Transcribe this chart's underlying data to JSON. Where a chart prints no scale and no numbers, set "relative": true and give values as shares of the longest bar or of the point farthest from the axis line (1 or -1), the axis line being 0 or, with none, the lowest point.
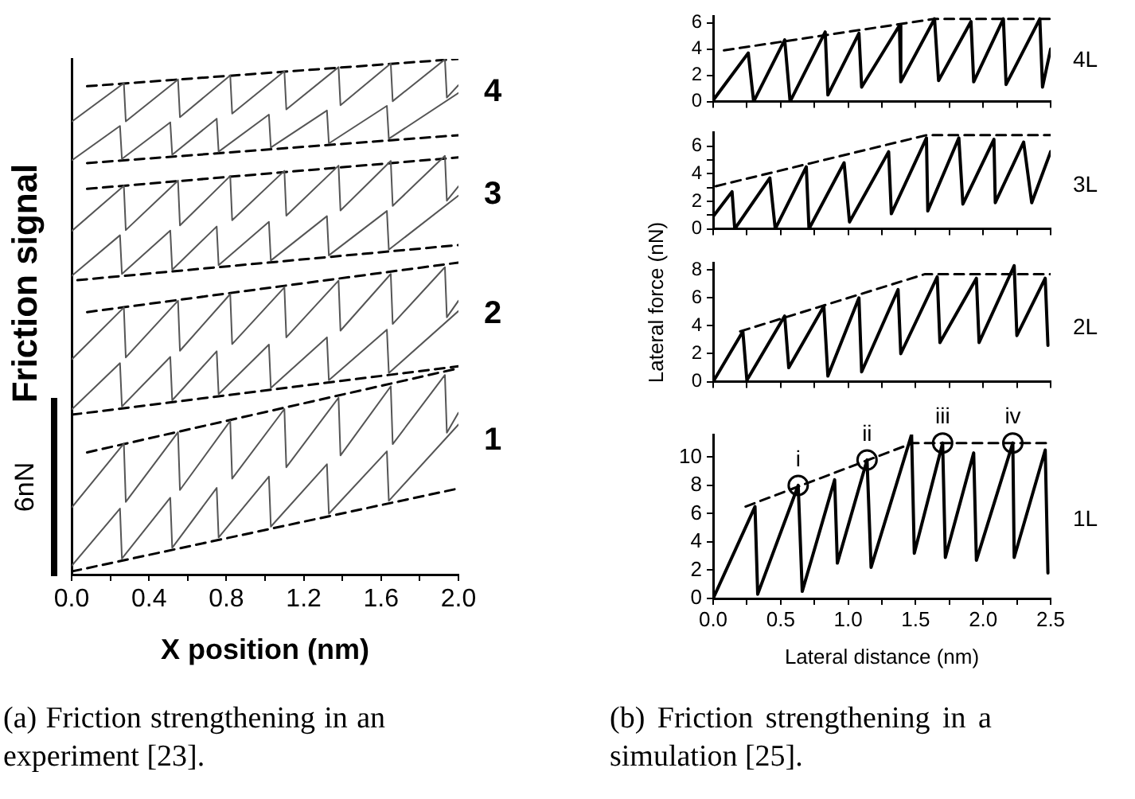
{
  "chart_data": [
    {
      "type": "line",
      "title": "(a) Friction strengthening in an experiment [23].",
      "xlabel": "X position (nm)",
      "ylabel": "Friction signal",
      "relative": true,
      "tick_labels": "x",
      "marker": "none",
      "line_style": "solid",
      "annotations": [
        "6nN"
      ],
      "xlim": [
        0,
        2.0
      ],
      "xticks": [
        {
          "value": 0,
          "label": "0.0"
        },
        {
          "value": 0.2,
          "label": null
        },
        {
          "value": 0.4,
          "label": "0.4"
        },
        {
          "value": 0.6,
          "label": null
        },
        {
          "value": 0.8,
          "label": "0.8"
        },
        {
          "value": 1.0,
          "label": null
        },
        {
          "value": 1.2,
          "label": "1.2"
        },
        {
          "value": 1.4,
          "label": null
        },
        {
          "value": 1.6,
          "label": "1.6"
        },
        {
          "value": 1.8,
          "label": null
        },
        {
          "value": 2.0,
          "label": "2.0"
        }
      ],
      "series": [
        {
          "name": "1",
          "color": "#555555",
          "x": [
            0,
            0.27,
            0.28,
            0.55,
            0.56,
            0.82,
            0.83,
            1.1,
            1.11,
            1.38,
            1.39,
            1.65,
            1.66,
            1.93,
            1.94,
            2.0
          ],
          "values": [
            0.13,
            0.254,
            0.141,
            0.276,
            0.164,
            0.298,
            0.186,
            0.321,
            0.208,
            0.343,
            0.231,
            0.365,
            0.253,
            0.387,
            0.275,
            0.314
          ]
        },
        {
          "color": "#555555",
          "x": [
            0,
            0.25,
            0.26,
            0.51,
            0.52,
            0.75,
            0.76,
            1.02,
            1.03,
            1.32,
            1.33,
            1.63,
            1.64,
            2.0
          ],
          "values": [
            0.017,
            0.128,
            0.031,
            0.149,
            0.052,
            0.168,
            0.072,
            0.19,
            0.093,
            0.214,
            0.118,
            0.239,
            0.143,
            0.291
          ]
        },
        {
          "color": "#000000",
          "line_style": "dashed",
          "x": [
            0,
            2.0
          ],
          "values": [
            0.006,
            0.167
          ]
        },
        {
          "color": "#000000",
          "line_style": "dashed",
          "x": [
            0.08,
            2.0
          ],
          "values": [
            0.237,
            0.4
          ]
        },
        {
          "name": "2",
          "color": "#555555",
          "x": [
            0,
            0.27,
            0.28,
            0.55,
            0.56,
            0.82,
            0.83,
            1.1,
            1.11,
            1.38,
            1.39,
            1.65,
            1.66,
            1.93,
            1.94,
            2.0
          ],
          "values": [
            0.417,
            0.518,
            0.421,
            0.531,
            0.434,
            0.544,
            0.447,
            0.557,
            0.46,
            0.57,
            0.473,
            0.583,
            0.486,
            0.596,
            0.499,
            0.531
          ]
        },
        {
          "color": "#555555",
          "x": [
            0,
            0.25,
            0.26,
            0.51,
            0.52,
            0.75,
            0.76,
            1.02,
            1.03,
            1.32,
            1.33,
            1.63,
            1.64,
            2.0
          ],
          "values": [
            0.32,
            0.41,
            0.326,
            0.422,
            0.338,
            0.433,
            0.35,
            0.446,
            0.362,
            0.46,
            0.377,
            0.475,
            0.391,
            0.511
          ]
        },
        {
          "color": "#000000",
          "line_style": "dashed",
          "x": [
            0,
            2.0
          ],
          "values": [
            0.31,
            0.404
          ]
        },
        {
          "color": "#000000",
          "line_style": "dashed",
          "x": [
            0.08,
            2.0
          ],
          "values": [
            0.509,
            0.605
          ]
        },
        {
          "name": "3",
          "color": "#555555",
          "x": [
            0,
            0.27,
            0.28,
            0.55,
            0.56,
            0.82,
            0.83,
            1.1,
            1.11,
            1.38,
            1.39,
            1.65,
            1.66,
            1.93,
            1.94,
            2.0
          ],
          "values": [
            0.666,
            0.754,
            0.668,
            0.764,
            0.677,
            0.773,
            0.687,
            0.783,
            0.696,
            0.793,
            0.706,
            0.802,
            0.715,
            0.812,
            0.725,
            0.753
          ]
        },
        {
          "color": "#555555",
          "x": [
            0,
            0.25,
            0.26,
            0.51,
            0.52,
            0.75,
            0.76,
            1.02,
            1.03,
            1.32,
            1.33,
            1.63,
            1.64,
            2.0
          ],
          "values": [
            0.579,
            0.658,
            0.583,
            0.667,
            0.591,
            0.675,
            0.6,
            0.684,
            0.609,
            0.695,
            0.619,
            0.705,
            0.63,
            0.735
          ]
        },
        {
          "color": "#000000",
          "line_style": "dashed",
          "x": [
            0.03,
            2.0
          ],
          "values": [
            0.571,
            0.639
          ]
        },
        {
          "color": "#000000",
          "line_style": "dashed",
          "x": [
            0.08,
            2.0
          ],
          "values": [
            0.748,
            0.809
          ]
        },
        {
          "name": "4",
          "color": "#555555",
          "x": [
            0,
            0.27,
            0.28,
            0.55,
            0.56,
            0.82,
            0.83,
            1.1,
            1.11,
            1.38,
            1.39,
            1.65,
            1.66,
            1.93,
            1.94,
            2.0
          ],
          "values": [
            0.878,
            0.953,
            0.879,
            0.96,
            0.887,
            0.968,
            0.894,
            0.976,
            0.902,
            0.984,
            0.91,
            0.991,
            0.918,
            0.999,
            0.925,
            0.949
          ]
        },
        {
          "color": "#555555",
          "x": [
            0,
            0.25,
            0.26,
            0.51,
            0.52,
            0.75,
            0.76,
            1.02,
            1.03,
            1.32,
            1.33,
            1.63,
            1.64,
            2.0
          ],
          "values": [
            0.803,
            0.87,
            0.806,
            0.877,
            0.814,
            0.884,
            0.82,
            0.892,
            0.828,
            0.9,
            0.836,
            0.909,
            0.845,
            0.934
          ]
        },
        {
          "color": "#000000",
          "line_style": "dashed",
          "x": [
            0.08,
            2.0
          ],
          "values": [
            0.798,
            0.852
          ]
        },
        {
          "color": "#000000",
          "line_style": "dashed",
          "x": [
            0.08,
            2.0
          ],
          "values": [
            0.947,
            1.0
          ]
        }
      ]
    },
    {
      "type": "line",
      "tick_labels": "y",
      "marker": "none",
      "line_style": "solid",
      "xlim": [
        0,
        2.5
      ],
      "xticks": [
        0,
        0.25,
        0.5,
        0.75,
        1.0,
        1.25,
        1.5,
        1.75,
        2.0,
        2.25,
        2.5
      ],
      "ylim": [
        0,
        6.5
      ],
      "yticks": [
        0,
        2,
        4,
        6
      ],
      "series": [
        {
          "name": "4L",
          "color": "#000000",
          "x": [
            0,
            0.26,
            0.3,
            0.53,
            0.57,
            0.83,
            0.85,
            1.08,
            1.1,
            1.38,
            1.39,
            1.64,
            1.67,
            1.91,
            1.93,
            2.15,
            2.17,
            2.42,
            2.44,
            2.5
          ],
          "values": [
            0.1,
            3.7,
            0,
            4.7,
            0,
            5.3,
            0.5,
            5.2,
            1.1,
            5.8,
            1.5,
            6.3,
            1.6,
            6.1,
            1.5,
            6.3,
            1.3,
            6.3,
            1.1,
            4.0
          ]
        },
        {
          "color": "#000000",
          "line_style": "dashed",
          "x": [
            0.08,
            1.64,
            2.5
          ],
          "values": [
            3.9,
            6.3,
            6.3
          ]
        }
      ]
    },
    {
      "type": "line",
      "tick_labels": "y",
      "marker": "none",
      "line_style": "solid",
      "xlim": [
        0,
        2.5
      ],
      "xticks": [
        0,
        0.25,
        0.5,
        0.75,
        1.0,
        1.25,
        1.5,
        1.75,
        2.0,
        2.25,
        2.5
      ],
      "ylim": [
        0,
        7
      ],
      "yticks": [
        0,
        {
          "value": 1,
          "label": null
        },
        2,
        {
          "value": 3,
          "label": null
        },
        4,
        {
          "value": 5,
          "label": null
        },
        6
      ],
      "series": [
        {
          "name": "3L",
          "color": "#000000",
          "x": [
            0,
            0.14,
            0.16,
            0.42,
            0.46,
            0.69,
            0.71,
            0.97,
            1.01,
            1.3,
            1.32,
            1.58,
            1.59,
            1.82,
            1.85,
            2.08,
            2.09,
            2.3,
            2.36,
            2.5
          ],
          "values": [
            0.9,
            2.7,
            0,
            3.7,
            0,
            4.5,
            0,
            4.8,
            0.5,
            5.6,
            1.1,
            6.6,
            1.3,
            6.6,
            1.8,
            6.5,
            1.9,
            6.3,
            1.9,
            5.6
          ]
        },
        {
          "color": "#000000",
          "line_style": "dashed",
          "x": [
            0.02,
            1.58,
            2.5
          ],
          "values": [
            3.1,
            6.8,
            6.8
          ]
        }
      ]
    },
    {
      "type": "line",
      "tick_labels": "y",
      "marker": "none",
      "line_style": "solid",
      "xlim": [
        0,
        2.5
      ],
      "xticks": [
        0,
        0.25,
        0.5,
        0.75,
        1.0,
        1.25,
        1.5,
        1.75,
        2.0,
        2.25,
        2.5
      ],
      "ylim": [
        0,
        8.5
      ],
      "yticks": [
        0,
        2,
        4,
        6,
        8
      ],
      "series": [
        {
          "name": "2L",
          "color": "#000000",
          "x": [
            0,
            0.22,
            0.25,
            0.53,
            0.56,
            0.82,
            0.85,
            1.08,
            1.1,
            1.37,
            1.39,
            1.66,
            1.68,
            1.95,
            1.97,
            2.23,
            2.25,
            2.46,
            2.48
          ],
          "values": [
            0,
            3.6,
            0.1,
            4.7,
            1.0,
            5.4,
            0.4,
            6.0,
            0.7,
            6.6,
            2.0,
            7.5,
            2.8,
            7.4,
            2.8,
            8.3,
            3.3,
            7.4,
            2.6
          ]
        },
        {
          "color": "#000000",
          "line_style": "dashed",
          "x": [
            0.2,
            1.57,
            2.5
          ],
          "values": [
            3.6,
            7.7,
            7.7
          ]
        }
      ]
    },
    {
      "type": "line",
      "title": "(b) Friction strengthening in a simulation [25].",
      "xlabel": "Lateral distance (nm)",
      "ylabel": "Lateral force (nN)",
      "marker": "none",
      "line_style": "solid",
      "xlim": [
        0,
        2.5
      ],
      "xticks": [
        {
          "value": 0,
          "label": "0.0"
        },
        {
          "value": 0.25,
          "label": null
        },
        {
          "value": 0.5,
          "label": "0.5"
        },
        {
          "value": 0.75,
          "label": null
        },
        {
          "value": 1.0,
          "label": "1.0"
        },
        {
          "value": 1.25,
          "label": null
        },
        {
          "value": 1.5,
          "label": "1.5"
        },
        {
          "value": 1.75,
          "label": null
        },
        {
          "value": 2.0,
          "label": "2.0"
        },
        {
          "value": 2.25,
          "label": null
        },
        {
          "value": 2.5,
          "label": "2.5"
        }
      ],
      "ylim": [
        0,
        11.6
      ],
      "yticks": [
        0,
        2,
        4,
        6,
        8,
        10
      ],
      "annotations": [
        {
          "text": "i",
          "x": 0.63,
          "y": 8.0
        },
        {
          "text": "ii",
          "x": 1.14,
          "y": 9.8
        },
        {
          "text": "iii",
          "x": 1.7,
          "y": 11.0
        },
        {
          "text": "iv",
          "x": 2.22,
          "y": 11.0
        }
      ],
      "series": [
        {
          "name": "1L",
          "color": "#000000",
          "x": [
            0,
            0.31,
            0.33,
            0.63,
            0.66,
            0.9,
            0.92,
            1.14,
            1.17,
            1.47,
            1.49,
            1.7,
            1.72,
            1.93,
            1.95,
            2.22,
            2.23,
            2.46,
            2.48
          ],
          "values": [
            0,
            6.5,
            0.3,
            8.0,
            0.5,
            8.4,
            2.5,
            9.8,
            2.2,
            11.6,
            3.2,
            11.0,
            2.9,
            10.3,
            2.7,
            11.0,
            2.9,
            10.5,
            1.8
          ]
        },
        {
          "color": "#000000",
          "line_style": "dashed",
          "x": [
            0.24,
            1.48,
            2.5
          ],
          "values": [
            6.5,
            11.0,
            11.0
          ]
        }
      ]
    }
  ]
}
